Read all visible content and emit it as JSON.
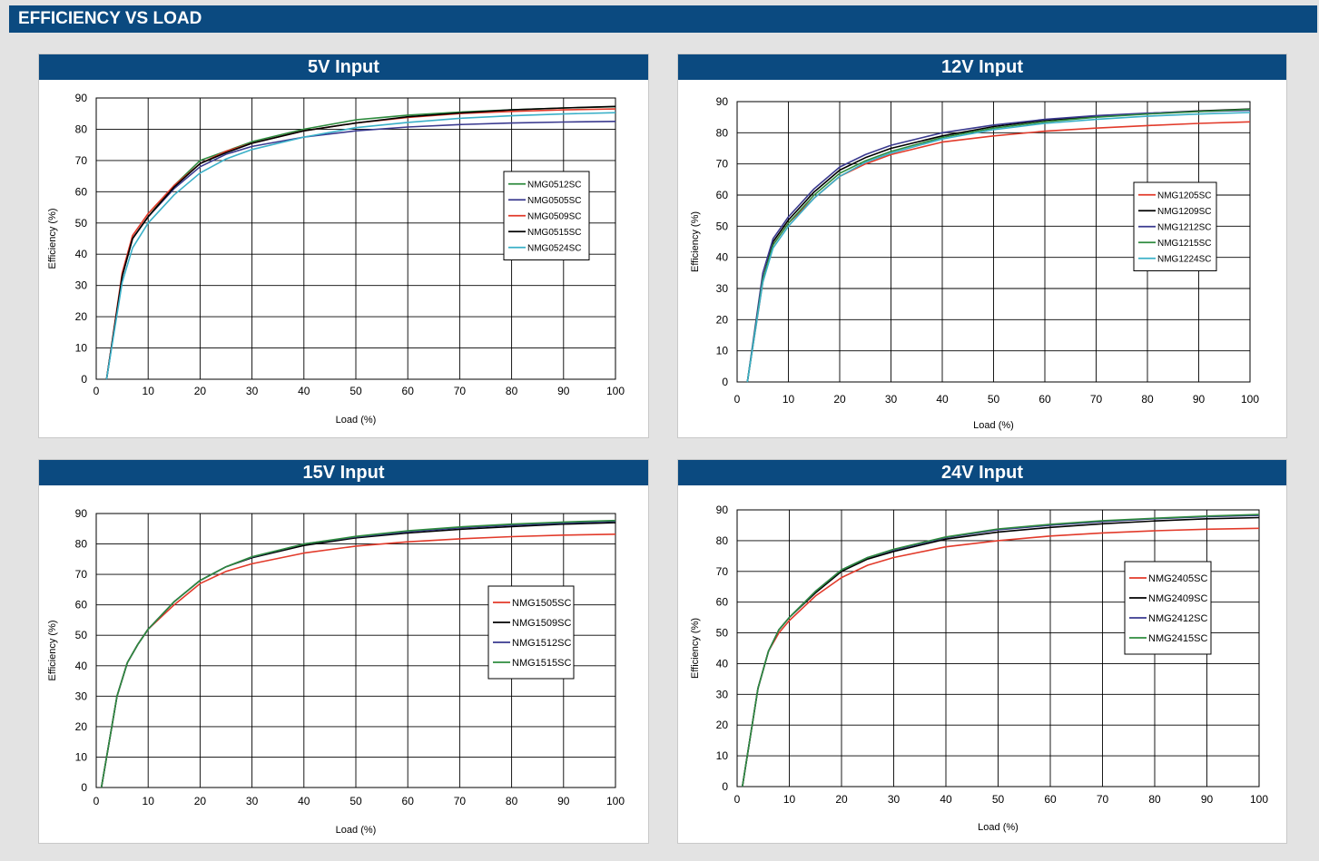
{
  "header": {
    "title": "EFFICIENCY VS LOAD"
  },
  "chart_data": [
    {
      "type": "line",
      "title": "5V Input",
      "xlabel": "Load  (%)",
      "ylabel": "Efficiency  (%)",
      "xlim": [
        0,
        100
      ],
      "ylim": [
        0,
        90
      ],
      "xticks": [
        0,
        10,
        20,
        30,
        40,
        50,
        60,
        70,
        80,
        90,
        100
      ],
      "yticks": [
        0,
        10,
        20,
        30,
        40,
        50,
        60,
        70,
        80,
        90
      ],
      "grid": true,
      "legend_position": "right",
      "series": [
        {
          "name": "NMG0512SC",
          "color": "#2e8b3e",
          "x": [
            2,
            5,
            7,
            10,
            15,
            20,
            25,
            30,
            40,
            50,
            60,
            70,
            80,
            90,
            100
          ],
          "y": [
            0,
            33,
            45,
            52,
            62,
            70,
            73,
            76,
            80,
            83,
            84.5,
            85.5,
            86.2,
            86.8,
            87.2
          ]
        },
        {
          "name": "NMG0505SC",
          "color": "#3a3a8f",
          "x": [
            2,
            5,
            7,
            10,
            15,
            20,
            25,
            30,
            40,
            50,
            60,
            70,
            80,
            90,
            100
          ],
          "y": [
            0,
            33,
            45,
            52,
            61,
            68,
            72,
            74.5,
            77.5,
            79.5,
            80.7,
            81.5,
            82,
            82.3,
            82.5
          ]
        },
        {
          "name": "NMG0509SC",
          "color": "#e23a2a",
          "x": [
            2,
            5,
            7,
            10,
            15,
            20,
            25,
            30,
            40,
            50,
            60,
            70,
            80,
            90,
            100
          ],
          "y": [
            0,
            34,
            46,
            53,
            62,
            69,
            73,
            75.5,
            79.5,
            82,
            83.8,
            85,
            85.7,
            86.2,
            86.5
          ]
        },
        {
          "name": "NMG0515SC",
          "color": "#000000",
          "x": [
            2,
            5,
            7,
            10,
            15,
            20,
            25,
            30,
            40,
            50,
            60,
            70,
            80,
            90,
            100
          ],
          "y": [
            0,
            33,
            45,
            52,
            61.5,
            69,
            72.5,
            75.5,
            79.5,
            82,
            84,
            85.2,
            86.2,
            86.8,
            87.3
          ]
        },
        {
          "name": "NMG0524SC",
          "color": "#3ab0c8",
          "x": [
            2,
            5,
            7,
            10,
            15,
            20,
            25,
            30,
            40,
            50,
            60,
            70,
            80,
            90,
            100
          ],
          "y": [
            0,
            31,
            42,
            50,
            59,
            66,
            70.5,
            73.5,
            77.5,
            80.5,
            82.2,
            83.5,
            84.3,
            84.9,
            85.3
          ]
        }
      ]
    },
    {
      "type": "line",
      "title": "12V Input",
      "xlabel": "Load  (%)",
      "ylabel": "Efficiency  (%)",
      "xlim": [
        0,
        100
      ],
      "ylim": [
        0,
        90
      ],
      "xticks": [
        0,
        10,
        20,
        30,
        40,
        50,
        60,
        70,
        80,
        90,
        100
      ],
      "yticks": [
        0,
        10,
        20,
        30,
        40,
        50,
        60,
        70,
        80,
        90
      ],
      "grid": true,
      "legend_position": "right",
      "series": [
        {
          "name": "NMG1205SC",
          "color": "#e23a2a",
          "x": [
            2,
            5,
            7,
            10,
            15,
            20,
            25,
            30,
            40,
            50,
            60,
            70,
            80,
            90,
            100
          ],
          "y": [
            0,
            32,
            44,
            51,
            59,
            66,
            70,
            73,
            77,
            79,
            80.5,
            81.5,
            82.3,
            83,
            83.5
          ]
        },
        {
          "name": "NMG1209SC",
          "color": "#000000",
          "x": [
            2,
            5,
            7,
            10,
            15,
            20,
            25,
            30,
            40,
            50,
            60,
            70,
            80,
            90,
            100
          ],
          "y": [
            0,
            33,
            45,
            52,
            61,
            68,
            72,
            75,
            79,
            82,
            84,
            85.2,
            86.2,
            87,
            87.6
          ]
        },
        {
          "name": "NMG1212SC",
          "color": "#3a3a8f",
          "x": [
            2,
            5,
            7,
            10,
            15,
            20,
            25,
            30,
            40,
            50,
            60,
            70,
            80,
            90,
            100
          ],
          "y": [
            0,
            35,
            46,
            53,
            62,
            69,
            73,
            76,
            80,
            82.5,
            84.3,
            85.5,
            86.3,
            86.8,
            87.2
          ]
        },
        {
          "name": "NMG1215SC",
          "color": "#2e8b3e",
          "x": [
            2,
            5,
            7,
            10,
            15,
            20,
            25,
            30,
            40,
            50,
            60,
            70,
            80,
            90,
            100
          ],
          "y": [
            0,
            33,
            44,
            51,
            60,
            67,
            71,
            74,
            78.5,
            81.5,
            83.5,
            85,
            86,
            86.8,
            87.5
          ]
        },
        {
          "name": "NMG1224SC",
          "color": "#3ab0c8",
          "x": [
            2,
            5,
            7,
            10,
            15,
            20,
            25,
            30,
            40,
            50,
            60,
            70,
            80,
            90,
            100
          ],
          "y": [
            0,
            32,
            43,
            50,
            59,
            66,
            70.5,
            73.5,
            78,
            81,
            83,
            84.3,
            85.3,
            86,
            86.5
          ]
        }
      ]
    },
    {
      "type": "line",
      "title": "15V Input",
      "xlabel": "Load  (%)",
      "ylabel": "Efficiency  (%)",
      "xlim": [
        0,
        100
      ],
      "ylim": [
        0,
        90
      ],
      "xticks": [
        0,
        10,
        20,
        30,
        40,
        50,
        60,
        70,
        80,
        90,
        100
      ],
      "yticks": [
        0,
        10,
        20,
        30,
        40,
        50,
        60,
        70,
        80,
        90
      ],
      "grid": true,
      "legend_position": "right",
      "series": [
        {
          "name": "NMG1505SC",
          "color": "#e23a2a",
          "x": [
            1,
            4,
            6,
            8,
            10,
            15,
            20,
            25,
            30,
            40,
            50,
            60,
            70,
            80,
            90,
            100
          ],
          "y": [
            0,
            30,
            41,
            47,
            52,
            60,
            67,
            71,
            73.5,
            77,
            79.3,
            80.7,
            81.7,
            82.4,
            82.9,
            83.2
          ]
        },
        {
          "name": "NMG1509SC",
          "color": "#000000",
          "x": [
            1,
            4,
            6,
            8,
            10,
            15,
            20,
            25,
            30,
            40,
            50,
            60,
            70,
            80,
            90,
            100
          ],
          "y": [
            0,
            30,
            41,
            47,
            52,
            61,
            68,
            72.5,
            75.5,
            79.5,
            82,
            83.6,
            84.8,
            85.7,
            86.5,
            87
          ]
        },
        {
          "name": "NMG1512SC",
          "color": "#3a3a8f",
          "x": [
            1,
            4,
            6,
            8,
            10,
            15,
            20,
            25,
            30,
            40,
            50,
            60,
            70,
            80,
            90,
            100
          ],
          "y": [
            0,
            30,
            41,
            47,
            52,
            61,
            68,
            72.5,
            75.7,
            80,
            82.3,
            84,
            85.3,
            86.2,
            86.9,
            87.5
          ]
        },
        {
          "name": "NMG1515SC",
          "color": "#2e8b3e",
          "x": [
            1,
            4,
            6,
            8,
            10,
            15,
            20,
            25,
            30,
            40,
            50,
            60,
            70,
            80,
            90,
            100
          ],
          "y": [
            0,
            30,
            41,
            47,
            52,
            61,
            68,
            72.5,
            75.8,
            80,
            82.5,
            84.3,
            85.6,
            86.5,
            87.2,
            87.7
          ]
        }
      ]
    },
    {
      "type": "line",
      "title": "24V Input",
      "xlabel": "Load  (%)",
      "ylabel": "Efficiency  (%)",
      "xlim": [
        0,
        100
      ],
      "ylim": [
        0,
        90
      ],
      "xticks": [
        0,
        10,
        20,
        30,
        40,
        50,
        60,
        70,
        80,
        90,
        100
      ],
      "yticks": [
        0,
        10,
        20,
        30,
        40,
        50,
        60,
        70,
        80,
        90
      ],
      "grid": true,
      "legend_position": "right",
      "series": [
        {
          "name": "NMG2405SC",
          "color": "#e23a2a",
          "x": [
            1,
            4,
            6,
            8,
            10,
            15,
            20,
            25,
            30,
            40,
            50,
            60,
            70,
            80,
            90,
            100
          ],
          "y": [
            0,
            32,
            44,
            50,
            54,
            62,
            68,
            72,
            74.5,
            78,
            80,
            81.5,
            82.5,
            83.2,
            83.7,
            84
          ]
        },
        {
          "name": "NMG2409SC",
          "color": "#000000",
          "x": [
            1,
            4,
            6,
            8,
            10,
            15,
            20,
            25,
            30,
            40,
            50,
            60,
            70,
            80,
            90,
            100
          ],
          "y": [
            0,
            32,
            44,
            51,
            55,
            63,
            70,
            74,
            76.5,
            80.5,
            82.8,
            84.3,
            85.5,
            86.4,
            87.1,
            87.5
          ]
        },
        {
          "name": "NMG2412SC",
          "color": "#3a3a8f",
          "x": [
            1,
            4,
            6,
            8,
            10,
            15,
            20,
            25,
            30,
            40,
            50,
            60,
            70,
            80,
            90,
            100
          ],
          "y": [
            0,
            32,
            44,
            51,
            55,
            63.5,
            70.5,
            74.5,
            77,
            81,
            83.5,
            85,
            86.2,
            87.1,
            87.8,
            88.2
          ]
        },
        {
          "name": "NMG2415SC",
          "color": "#2e8b3e",
          "x": [
            1,
            4,
            6,
            8,
            10,
            15,
            20,
            25,
            30,
            40,
            50,
            60,
            70,
            80,
            90,
            100
          ],
          "y": [
            0,
            32,
            44,
            51,
            55,
            63.5,
            70.5,
            74.5,
            77.2,
            81.2,
            83.8,
            85.3,
            86.5,
            87.3,
            88,
            88.5
          ]
        }
      ]
    }
  ]
}
